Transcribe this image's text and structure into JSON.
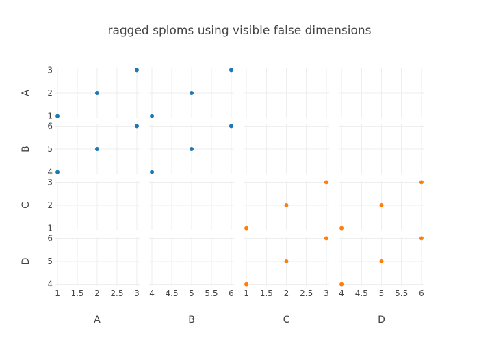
{
  "chart_data": {
    "type": "scatter",
    "subtype": "splom",
    "title": "ragged sploms using visible false dimensions",
    "dimensions": [
      {
        "label": "A",
        "values": [
          1,
          2,
          3
        ],
        "ticks": [
          "1",
          "1.5",
          "2",
          "2.5",
          "3"
        ],
        "yticks": [
          "1",
          "2",
          "3"
        ],
        "range": [
          0.93,
          3.07
        ]
      },
      {
        "label": "B",
        "values": [
          4,
          5,
          6
        ],
        "ticks": [
          "4",
          "4.5",
          "5",
          "5.5",
          "6"
        ],
        "yticks": [
          "4",
          "5",
          "6"
        ],
        "range": [
          3.93,
          6.07
        ]
      },
      {
        "label": "C",
        "values": [
          1,
          2,
          3
        ],
        "ticks": [
          "1",
          "1.5",
          "2",
          "2.5",
          "3"
        ],
        "yticks": [
          "1",
          "2",
          "3"
        ],
        "range": [
          0.93,
          3.07
        ]
      },
      {
        "label": "D",
        "values": [
          4,
          5,
          6
        ],
        "ticks": [
          "4",
          "4.5",
          "5",
          "5.5",
          "6"
        ],
        "yticks": [
          "4",
          "5",
          "6"
        ],
        "range": [
          3.93,
          6.07
        ]
      }
    ],
    "traces": [
      {
        "color": "#1f77b4",
        "dimensions": [
          "A",
          "B"
        ]
      },
      {
        "color": "#ff7f0e",
        "dimensions": [
          "C",
          "D"
        ]
      }
    ],
    "grid": true
  }
}
